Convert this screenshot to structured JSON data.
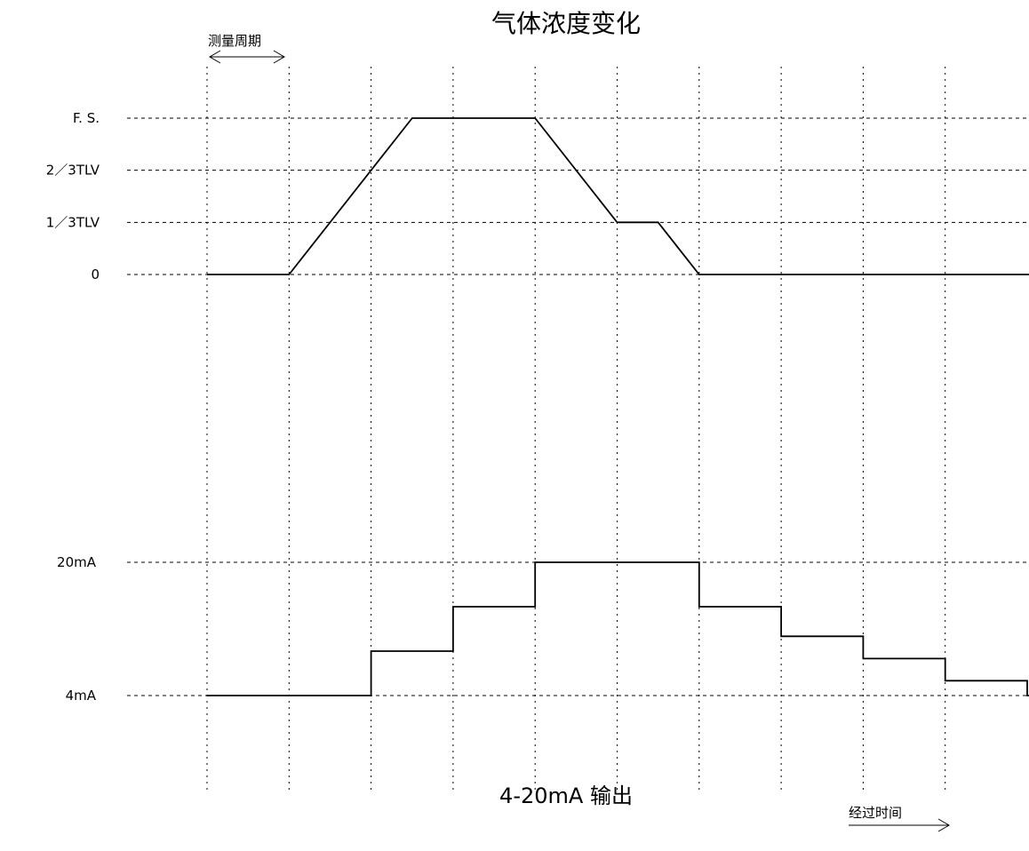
{
  "chart_data": [
    {
      "type": "line",
      "title": "气体浓度变化",
      "period_note": "测量周期",
      "x": [
        0,
        1,
        2,
        2.5,
        3,
        4,
        5,
        5.5,
        6,
        7,
        8,
        9,
        10
      ],
      "y_levels": [
        {
          "key": "fs",
          "label": "F. S.",
          "value": 3
        },
        {
          "key": "tlv23",
          "label": "2／3TLV",
          "value": 2
        },
        {
          "key": "tlv13",
          "label": "1／3TLV",
          "value": 1
        },
        {
          "key": "zero",
          "label": "0",
          "value": 0
        }
      ],
      "series": [
        {
          "values": [
            0,
            0,
            2,
            3,
            3,
            3,
            1,
            1,
            0,
            0,
            0,
            0,
            0
          ]
        }
      ],
      "ylim": [
        0,
        3
      ],
      "grid": true
    },
    {
      "type": "line",
      "step": true,
      "title": "4-20mA 输出",
      "x": [
        0,
        1,
        2,
        3,
        4,
        5,
        6,
        7,
        8,
        9,
        10
      ],
      "y_levels": [
        {
          "key": "ma20",
          "label": "20mA",
          "value": 20
        },
        {
          "key": "ma4",
          "label": "4mA",
          "value": 4
        }
      ],
      "series": [
        {
          "values": [
            4,
            4,
            9.33,
            14.67,
            20,
            20,
            14.67,
            11.11,
            8.44,
            5.78,
            4
          ]
        }
      ],
      "ylim": [
        4,
        20
      ],
      "grid": true
    }
  ],
  "elapsed_label": "经过时间"
}
